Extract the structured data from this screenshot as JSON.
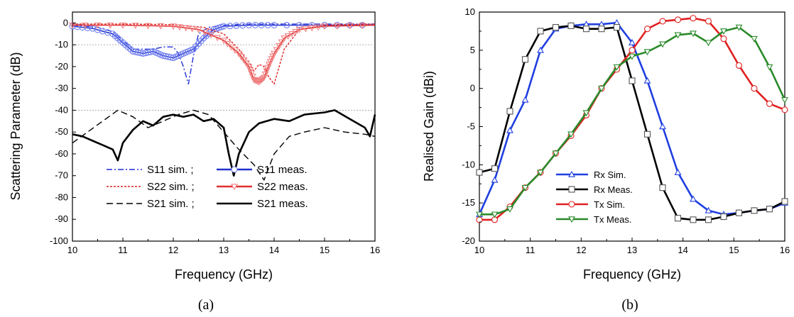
{
  "chart_data": [
    {
      "type": "line",
      "caption": "(a)",
      "xlabel": "Frequency (GHz)",
      "ylabel": "Scattering Parameter (dB)",
      "xlim": [
        10,
        16
      ],
      "ylim": [
        -100,
        5
      ],
      "xticks": [
        "10",
        "11",
        "12",
        "13",
        "14",
        "15",
        "16"
      ],
      "yticks": [
        "0",
        "-10",
        "-20",
        "-30",
        "-40",
        "-50",
        "-60",
        "-70",
        "-80",
        "-90",
        "-100"
      ],
      "hlines": [
        -10,
        -40
      ],
      "legend_position": "bottom-center",
      "legend_rows": [
        {
          "sim": "S11 sim. ;",
          "meas": "S11 meas."
        },
        {
          "sim": "S22 sim. ;",
          "meas": "S22 meas."
        },
        {
          "sim": "S21 sim. ;",
          "meas": "S21 meas."
        }
      ],
      "series": [
        {
          "key": "s11sim",
          "color": "#1f2fd6",
          "dash": "8,3,2,3",
          "marker": "none",
          "x": [
            10,
            10.5,
            10.8,
            11.0,
            11.2,
            11.4,
            11.6,
            11.8,
            12.0,
            12.1,
            12.2,
            12.3,
            12.4,
            12.5,
            12.7,
            13.0,
            13.5,
            14,
            15,
            16
          ],
          "y": [
            -1,
            -2,
            -4,
            -8,
            -12,
            -12,
            -12,
            -11,
            -11,
            -14,
            -20,
            -28,
            -15,
            -5,
            -2,
            -1,
            -0.5,
            -0.5,
            -0.5,
            -0.5
          ]
        },
        {
          "key": "s11meas",
          "color": "#2233cc",
          "dash": "",
          "marker": "circle",
          "markerColor": "#6f7ef0",
          "x": [
            10,
            10.4,
            10.8,
            11.0,
            11.2,
            11.4,
            11.6,
            11.8,
            12.0,
            12.2,
            12.4,
            12.6,
            12.8,
            13.0,
            13.5,
            14,
            15,
            16
          ],
          "y": [
            -1.5,
            -2.5,
            -5,
            -9,
            -13,
            -14,
            -13,
            -15,
            -16,
            -14,
            -12,
            -7,
            -3,
            -1.5,
            -1,
            -1,
            -1,
            -1
          ]
        },
        {
          "key": "s22sim",
          "color": "#e02020",
          "dash": "3,2",
          "marker": "none",
          "x": [
            10,
            11,
            12,
            12.6,
            13.0,
            13.3,
            13.5,
            13.6,
            13.7,
            13.8,
            13.9,
            14.0,
            14.2,
            14.5,
            15,
            16
          ],
          "y": [
            -0.5,
            -0.5,
            -0.8,
            -2,
            -5,
            -12,
            -18,
            -22,
            -19,
            -20,
            -25,
            -28,
            -12,
            -3,
            -1,
            -0.5
          ]
        },
        {
          "key": "s22meas",
          "color": "#e03030",
          "dash": "",
          "marker": "triangle-down",
          "markerColor": "#f08080",
          "x": [
            10,
            11,
            12,
            12.5,
            13.0,
            13.3,
            13.5,
            13.6,
            13.7,
            13.8,
            13.9,
            14.0,
            14.2,
            14.5,
            15,
            16
          ],
          "y": [
            -1,
            -1,
            -1.5,
            -3,
            -8,
            -14,
            -20,
            -26,
            -27,
            -25,
            -19,
            -14,
            -7,
            -3,
            -1.5,
            -1
          ]
        },
        {
          "key": "s21sim",
          "color": "#000000",
          "dash": "9,5",
          "marker": "none",
          "x": [
            10,
            10.3,
            10.6,
            10.9,
            11.2,
            11.5,
            11.8,
            12.1,
            12.4,
            12.7,
            13.0,
            13.3,
            13.6,
            13.8,
            14.0,
            14.3,
            14.6,
            15.0,
            15.4,
            15.8,
            16
          ],
          "y": [
            -55,
            -50,
            -45,
            -40,
            -43,
            -48,
            -45,
            -42,
            -40,
            -42,
            -50,
            -58,
            -65,
            -72,
            -60,
            -52,
            -50,
            -48,
            -50,
            -51,
            -52
          ]
        },
        {
          "key": "s21meas",
          "color": "#000000",
          "dash": "",
          "marker": "none",
          "width": 2.6,
          "x": [
            10,
            10.2,
            10.4,
            10.6,
            10.8,
            10.9,
            11.0,
            11.2,
            11.4,
            11.6,
            11.8,
            12.0,
            12.2,
            12.4,
            12.6,
            12.8,
            13.0,
            13.1,
            13.2,
            13.3,
            13.5,
            13.7,
            14.0,
            14.3,
            14.6,
            15.0,
            15.2,
            15.5,
            15.8,
            15.9,
            16
          ],
          "y": [
            -51,
            -52,
            -54,
            -56,
            -58,
            -63,
            -55,
            -49,
            -45,
            -47,
            -43,
            -42,
            -43,
            -42,
            -45,
            -44,
            -48,
            -60,
            -70,
            -60,
            -50,
            -46,
            -44,
            -45,
            -42,
            -41,
            -40,
            -44,
            -48,
            -52,
            -42
          ]
        }
      ]
    },
    {
      "type": "line",
      "caption": "(b)",
      "xlabel": "Frequency (GHz)",
      "ylabel": "Realised Gain (dBi)",
      "xlim": [
        10,
        16
      ],
      "ylim": [
        -20,
        10
      ],
      "xticks": [
        "10",
        "11",
        "12",
        "13",
        "14",
        "15",
        "16"
      ],
      "yticks": [
        "10",
        "5",
        "0",
        "-5",
        "-10",
        "-15",
        "-20"
      ],
      "legend_position": "bottom-center",
      "series": [
        {
          "key": "rxsim",
          "name": "Rx Sim.",
          "color": "#1f3fe0",
          "marker": "triangle-up",
          "x": [
            10,
            10.3,
            10.6,
            10.9,
            11.2,
            11.5,
            11.8,
            12.1,
            12.4,
            12.7,
            13.0,
            13.3,
            13.6,
            13.9,
            14.2,
            14.5,
            14.8,
            15.1,
            15.4,
            15.7,
            16
          ],
          "y": [
            -16.5,
            -12,
            -5.5,
            -1.5,
            5,
            7.8,
            8.2,
            8.4,
            8.4,
            8.6,
            6,
            1,
            -5,
            -11,
            -14.5,
            -16,
            -16.5,
            -16.3,
            -16,
            -15.8,
            -15
          ]
        },
        {
          "key": "rxmeas",
          "name": "Rx Meas.",
          "color": "#000000",
          "marker": "square",
          "x": [
            10,
            10.3,
            10.6,
            10.9,
            11.2,
            11.5,
            11.8,
            12.1,
            12.4,
            12.7,
            13.0,
            13.3,
            13.6,
            13.9,
            14.2,
            14.5,
            14.8,
            15.1,
            15.4,
            15.7,
            16
          ],
          "y": [
            -11,
            -10.5,
            -3,
            3.8,
            7.5,
            8,
            8.2,
            7.8,
            7.8,
            8,
            1,
            -6,
            -13,
            -17,
            -17.2,
            -17.2,
            -16.8,
            -16.3,
            -16,
            -15.8,
            -14.8
          ]
        },
        {
          "key": "txsim",
          "name": "Tx Sim.",
          "color": "#e02020",
          "marker": "circle",
          "x": [
            10,
            10.3,
            10.6,
            10.9,
            11.2,
            11.5,
            11.8,
            12.1,
            12.4,
            12.7,
            13.0,
            13.3,
            13.6,
            13.9,
            14.2,
            14.5,
            14.8,
            15.1,
            15.4,
            15.7,
            16
          ],
          "y": [
            -17.2,
            -17.2,
            -15.5,
            -13,
            -11,
            -8.5,
            -6.2,
            -3.5,
            0,
            2.5,
            5,
            7.8,
            8.8,
            9,
            9.2,
            8.8,
            6.5,
            3,
            0,
            -2,
            -2.8
          ]
        },
        {
          "key": "txmeas",
          "name": "Tx Meas.",
          "color": "#2a8a2a",
          "marker": "triangle-down",
          "x": [
            10,
            10.3,
            10.6,
            10.9,
            11.2,
            11.5,
            11.8,
            12.1,
            12.4,
            12.7,
            13.0,
            13.3,
            13.6,
            13.9,
            14.2,
            14.5,
            14.8,
            15.1,
            15.4,
            15.7,
            16
          ],
          "y": [
            -16.5,
            -16.5,
            -15.8,
            -13,
            -11,
            -8.5,
            -6,
            -3.2,
            0,
            2.8,
            4.2,
            4.8,
            5.8,
            7,
            7.2,
            6,
            7.5,
            8,
            6.5,
            2.8,
            -1.5
          ]
        }
      ]
    }
  ]
}
